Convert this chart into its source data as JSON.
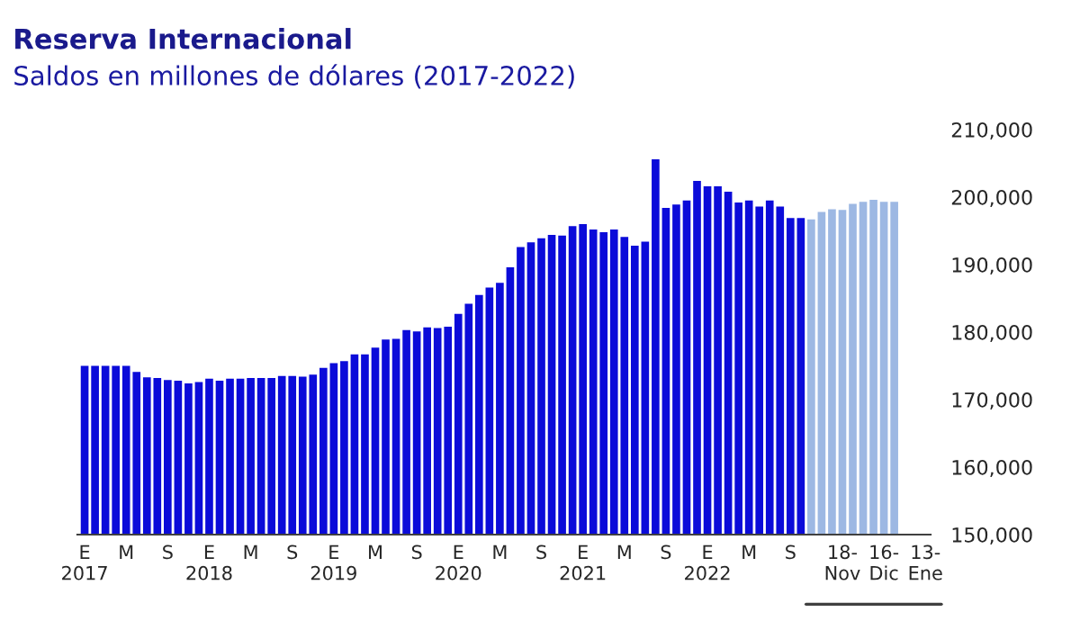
{
  "chart_data": {
    "type": "bar",
    "title": "Reserva Internacional",
    "subtitle": "Saldos en millones de dólares (2017-2022)",
    "categories": [
      "E\n2017",
      null,
      null,
      null,
      "M",
      null,
      null,
      null,
      "S",
      null,
      null,
      null,
      "E\n2018",
      null,
      null,
      null,
      "M",
      null,
      null,
      null,
      "S",
      null,
      null,
      null,
      "E\n2019",
      null,
      null,
      null,
      "M",
      null,
      null,
      null,
      "S",
      null,
      null,
      null,
      "E\n2020",
      null,
      null,
      null,
      "M",
      null,
      null,
      null,
      "S",
      null,
      null,
      null,
      "E\n2021",
      null,
      null,
      null,
      "M",
      null,
      null,
      null,
      "S",
      null,
      null,
      null,
      "E\n2022",
      null,
      null,
      null,
      "M",
      null,
      null,
      null,
      "S",
      null,
      null,
      null,
      null,
      "18-\nNov",
      null,
      null,
      null,
      "16-\nDic",
      null,
      null,
      null,
      "13-\nEne"
    ],
    "values": [
      175000,
      175000,
      175000,
      175000,
      175000,
      174100,
      173300,
      173200,
      172900,
      172800,
      172400,
      172600,
      173100,
      172800,
      173100,
      173100,
      173200,
      173200,
      173200,
      173500,
      173500,
      173400,
      173700,
      174700,
      175400,
      175700,
      176700,
      176700,
      177700,
      178900,
      179000,
      180300,
      180100,
      180700,
      180600,
      180800,
      182700,
      184200,
      185500,
      186600,
      187300,
      189600,
      192600,
      193300,
      193900,
      194400,
      194300,
      195700,
      196000,
      195200,
      194800,
      195200,
      194100,
      192800,
      193400,
      205600,
      198400,
      198900,
      199500,
      202400,
      201600,
      201600,
      200800,
      199200,
      199500,
      198600,
      199500,
      198600,
      196900,
      196900,
      196700,
      197800,
      198200,
      198100,
      199000,
      199300,
      199600,
      199300,
      199300,
      null,
      null,
      null
    ],
    "colors": [
      "#0b0bd9",
      "#0b0bd9",
      "#0b0bd9",
      "#0b0bd9",
      "#0b0bd9",
      "#0b0bd9",
      "#0b0bd9",
      "#0b0bd9",
      "#0b0bd9",
      "#0b0bd9",
      "#0b0bd9",
      "#0b0bd9",
      "#0b0bd9",
      "#0b0bd9",
      "#0b0bd9",
      "#0b0bd9",
      "#0b0bd9",
      "#0b0bd9",
      "#0b0bd9",
      "#0b0bd9",
      "#0b0bd9",
      "#0b0bd9",
      "#0b0bd9",
      "#0b0bd9",
      "#0b0bd9",
      "#0b0bd9",
      "#0b0bd9",
      "#0b0bd9",
      "#0b0bd9",
      "#0b0bd9",
      "#0b0bd9",
      "#0b0bd9",
      "#0b0bd9",
      "#0b0bd9",
      "#0b0bd9",
      "#0b0bd9",
      "#0b0bd9",
      "#0b0bd9",
      "#0b0bd9",
      "#0b0bd9",
      "#0b0bd9",
      "#0b0bd9",
      "#0b0bd9",
      "#0b0bd9",
      "#0b0bd9",
      "#0b0bd9",
      "#0b0bd9",
      "#0b0bd9",
      "#0b0bd9",
      "#0b0bd9",
      "#0b0bd9",
      "#0b0bd9",
      "#0b0bd9",
      "#0b0bd9",
      "#0b0bd9",
      "#0b0bd9",
      "#0b0bd9",
      "#0b0bd9",
      "#0b0bd9",
      "#0b0bd9",
      "#0b0bd9",
      "#0b0bd9",
      "#0b0bd9",
      "#0b0bd9",
      "#0b0bd9",
      "#0b0bd9",
      "#0b0bd9",
      "#0b0bd9",
      "#0b0bd9",
      "#0b0bd9",
      "#9db8e3",
      "#9db8e3",
      "#9db8e3",
      "#9db8e3",
      "#9db8e3",
      "#9db8e3",
      "#9db8e3",
      "#9db8e3",
      "#9db8e3",
      "#9db8e3",
      "#9db8e3",
      "#9db8e3"
    ],
    "ylim": [
      150000,
      210000
    ],
    "yticks": [
      {
        "value": 150000,
        "label": "150,000"
      },
      {
        "value": 160000,
        "label": "160,000"
      },
      {
        "value": 170000,
        "label": "170,000"
      },
      {
        "value": 180000,
        "label": "180,000"
      },
      {
        "value": 190000,
        "label": "190,000"
      },
      {
        "value": 200000,
        "label": "200,000"
      },
      {
        "value": 210000,
        "label": "210,000"
      }
    ],
    "grid": false,
    "legend": false
  }
}
